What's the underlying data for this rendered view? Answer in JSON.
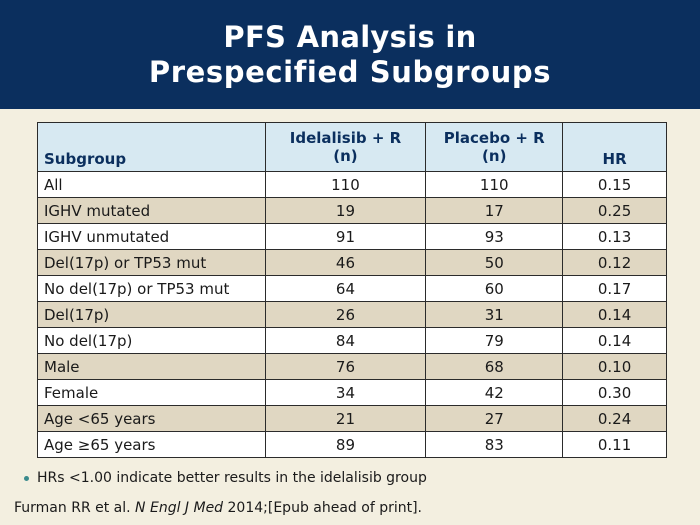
{
  "slide": {
    "title_line1": "PFS Analysis in",
    "title_line2": "Prespecified Subgroups"
  },
  "table": {
    "headers": {
      "subgroup": "Subgroup",
      "idelalisib_line1": "Idelalisib + R",
      "idelalisib_line2": "(n)",
      "placebo_line1": "Placebo + R",
      "placebo_line2": "(n)",
      "hr": "HR"
    },
    "rows": [
      {
        "subgroup": "All",
        "idelalisib": "110",
        "placebo": "110",
        "hr": "0.15"
      },
      {
        "subgroup": "IGHV mutated",
        "idelalisib": "19",
        "placebo": "17",
        "hr": "0.25"
      },
      {
        "subgroup": "IGHV unmutated",
        "idelalisib": "91",
        "placebo": "93",
        "hr": "0.13"
      },
      {
        "subgroup": "Del(17p) or TP53 mut",
        "idelalisib": "46",
        "placebo": "50",
        "hr": "0.12"
      },
      {
        "subgroup": "No del(17p) or TP53 mut",
        "idelalisib": "64",
        "placebo": "60",
        "hr": "0.17"
      },
      {
        "subgroup": "Del(17p)",
        "idelalisib": "26",
        "placebo": "31",
        "hr": "0.14"
      },
      {
        "subgroup": "No del(17p)",
        "idelalisib": "84",
        "placebo": "79",
        "hr": "0.14"
      },
      {
        "subgroup": "Male",
        "idelalisib": "76",
        "placebo": "68",
        "hr": "0.10"
      },
      {
        "subgroup": "Female",
        "idelalisib": "34",
        "placebo": "42",
        "hr": "0.30"
      },
      {
        "subgroup": "Age <65 years",
        "idelalisib": "21",
        "placebo": "27",
        "hr": "0.24"
      },
      {
        "subgroup": "Age ≥65 years",
        "idelalisib": "89",
        "placebo": "83",
        "hr": "0.11"
      }
    ]
  },
  "note": "HRs <1.00 indicate better results in the idelalisib group",
  "citation": {
    "before": "Furman RR et al. ",
    "journal": "N Engl J Med",
    "after": " 2014;[Epub ahead of print]."
  },
  "colors": {
    "header_bg": "#0b2f5e",
    "table_header_bg": "#d7e9f2",
    "row_alt_bg": "#e0d7c2",
    "page_bg": "#f3efe0",
    "bullet": "#3a8a8c"
  }
}
